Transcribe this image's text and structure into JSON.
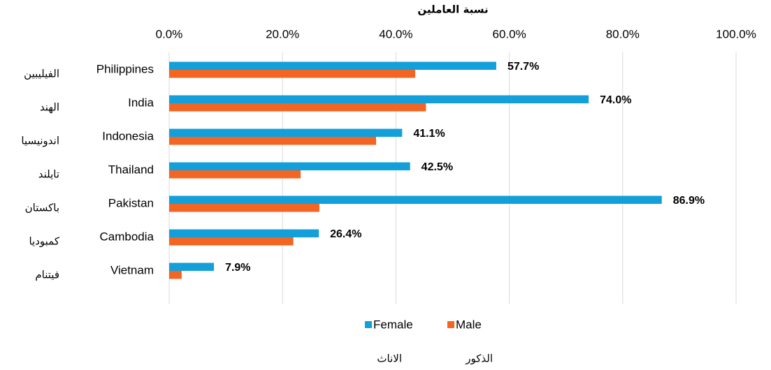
{
  "chart_data": {
    "type": "hbar",
    "title": "نسبة العاملين",
    "categories": [
      "Philippines",
      "India",
      "Indonesia",
      "Thailand",
      "Pakistan",
      "Cambodia",
      "Vietnam"
    ],
    "categories_ar": [
      "الفيليبين",
      "الهند",
      "اندونيسيا",
      "تايلند",
      "باكستان",
      "كمبوديا",
      "فيتنام"
    ],
    "series": [
      {
        "name": "Female",
        "label_ar": "الاناث",
        "color": "#139fd9",
        "values": [
          57.7,
          74.0,
          41.1,
          42.5,
          86.9,
          26.4,
          7.9
        ],
        "value_labels": [
          "57.7%",
          "74.0%",
          "41.1%",
          "42.5%",
          "86.9%",
          "26.4%",
          "7.9%"
        ]
      },
      {
        "name": "Male",
        "label_ar": "الذكور",
        "color": "#f26522",
        "values": [
          43.4,
          45.3,
          36.5,
          23.2,
          26.5,
          21.9,
          2.2
        ]
      }
    ],
    "xlim": [
      0,
      100
    ],
    "xticks": [
      {
        "value": 0,
        "label": "0.0%"
      },
      {
        "value": 20,
        "label": "20.0%"
      },
      {
        "value": 40,
        "label": "40.0%"
      },
      {
        "value": 60,
        "label": "60.0%"
      },
      {
        "value": 80,
        "label": "80.0%"
      },
      {
        "value": 100,
        "label": "100.0%"
      }
    ],
    "grid": true,
    "legend": "bottom"
  }
}
